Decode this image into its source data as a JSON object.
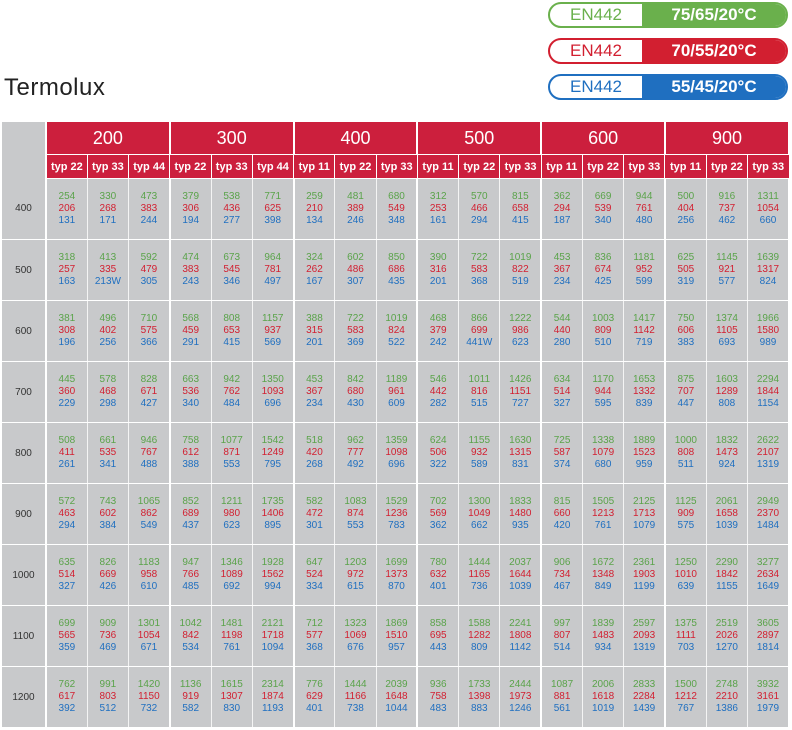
{
  "legend": [
    {
      "standard": "EN442",
      "condition": "75/65/20°C",
      "color": "#6ab04c"
    },
    {
      "standard": "EN442",
      "condition": "70/55/20°C",
      "color": "#d21f30"
    },
    {
      "standard": "EN442",
      "condition": "55/45/20°C",
      "color": "#1f6fc0"
    }
  ],
  "title": "Termolux",
  "groups": [
    "200",
    "300",
    "400",
    "500",
    "600",
    "900"
  ],
  "types": [
    [
      "typ 22",
      "typ 33",
      "typ 44"
    ],
    [
      "typ 22",
      "typ 33",
      "typ 44"
    ],
    [
      "typ 11",
      "typ 22",
      "typ 33"
    ],
    [
      "typ 11",
      "typ 22",
      "typ 33"
    ],
    [
      "typ 11",
      "typ 22",
      "typ 33"
    ],
    [
      "typ 11",
      "typ 22",
      "typ 33"
    ]
  ],
  "rows": [
    {
      "label": "400",
      "cells": [
        [
          "254",
          "206",
          "131"
        ],
        [
          "330",
          "268",
          "171"
        ],
        [
          "473",
          "383",
          "244"
        ],
        [
          "379",
          "306",
          "194"
        ],
        [
          "538",
          "436",
          "277"
        ],
        [
          "771",
          "625",
          "398"
        ],
        [
          "259",
          "210",
          "134"
        ],
        [
          "481",
          "389",
          "246"
        ],
        [
          "680",
          "549",
          "348"
        ],
        [
          "312",
          "253",
          "161"
        ],
        [
          "570",
          "466",
          "294"
        ],
        [
          "815",
          "658",
          "415"
        ],
        [
          "362",
          "294",
          "187"
        ],
        [
          "669",
          "539",
          "340"
        ],
        [
          "944",
          "761",
          "480"
        ],
        [
          "500",
          "404",
          "256"
        ],
        [
          "916",
          "737",
          "462"
        ],
        [
          "1311",
          "1054",
          "660"
        ]
      ]
    },
    {
      "label": "500",
      "cells": [
        [
          "318",
          "257",
          "163"
        ],
        [
          "413",
          "335",
          "213W"
        ],
        [
          "592",
          "479",
          "305"
        ],
        [
          "474",
          "383",
          "243"
        ],
        [
          "673",
          "545",
          "346"
        ],
        [
          "964",
          "781",
          "497"
        ],
        [
          "324",
          "262",
          "167"
        ],
        [
          "602",
          "486",
          "307"
        ],
        [
          "850",
          "686",
          "435"
        ],
        [
          "390",
          "316",
          "201"
        ],
        [
          "722",
          "583",
          "368"
        ],
        [
          "1019",
          "822",
          "519"
        ],
        [
          "453",
          "367",
          "234"
        ],
        [
          "836",
          "674",
          "425"
        ],
        [
          "1181",
          "952",
          "599"
        ],
        [
          "625",
          "505",
          "319"
        ],
        [
          "1145",
          "921",
          "577"
        ],
        [
          "1639",
          "1317",
          "824"
        ]
      ]
    },
    {
      "label": "600",
      "cells": [
        [
          "381",
          "308",
          "196"
        ],
        [
          "496",
          "402",
          "256"
        ],
        [
          "710",
          "575",
          "366"
        ],
        [
          "568",
          "459",
          "291"
        ],
        [
          "808",
          "653",
          "415"
        ],
        [
          "1157",
          "937",
          "569"
        ],
        [
          "388",
          "315",
          "201"
        ],
        [
          "722",
          "583",
          "369"
        ],
        [
          "1019",
          "824",
          "522"
        ],
        [
          "468",
          "379",
          "242"
        ],
        [
          "866",
          "699",
          "441W"
        ],
        [
          "1222",
          "986",
          "623"
        ],
        [
          "544",
          "440",
          "280"
        ],
        [
          "1003",
          "809",
          "510"
        ],
        [
          "1417",
          "1142",
          "719"
        ],
        [
          "750",
          "606",
          "383"
        ],
        [
          "1374",
          "1105",
          "693"
        ],
        [
          "1966",
          "1580",
          "989"
        ]
      ]
    },
    {
      "label": "700",
      "cells": [
        [
          "445",
          "360",
          "229"
        ],
        [
          "578",
          "468",
          "298"
        ],
        [
          "828",
          "671",
          "427"
        ],
        [
          "663",
          "536",
          "340"
        ],
        [
          "942",
          "762",
          "484"
        ],
        [
          "1350",
          "1093",
          "696"
        ],
        [
          "453",
          "367",
          "234"
        ],
        [
          "842",
          "680",
          "430"
        ],
        [
          "1189",
          "961",
          "609"
        ],
        [
          "546",
          "442",
          "282"
        ],
        [
          "1011",
          "816",
          "515"
        ],
        [
          "1426",
          "1151",
          "727"
        ],
        [
          "634",
          "514",
          "327"
        ],
        [
          "1170",
          "944",
          "595"
        ],
        [
          "1653",
          "1332",
          "839"
        ],
        [
          "875",
          "707",
          "447"
        ],
        [
          "1603",
          "1289",
          "808"
        ],
        [
          "2294",
          "1844",
          "1154"
        ]
      ]
    },
    {
      "label": "800",
      "cells": [
        [
          "508",
          "411",
          "261"
        ],
        [
          "661",
          "535",
          "341"
        ],
        [
          "946",
          "767",
          "488"
        ],
        [
          "758",
          "612",
          "388"
        ],
        [
          "1077",
          "871",
          "553"
        ],
        [
          "1542",
          "1249",
          "795"
        ],
        [
          "518",
          "420",
          "268"
        ],
        [
          "962",
          "777",
          "492"
        ],
        [
          "1359",
          "1098",
          "696"
        ],
        [
          "624",
          "506",
          "322"
        ],
        [
          "1155",
          "932",
          "589"
        ],
        [
          "1630",
          "1315",
          "831"
        ],
        [
          "725",
          "587",
          "374"
        ],
        [
          "1338",
          "1079",
          "680"
        ],
        [
          "1889",
          "1523",
          "959"
        ],
        [
          "1000",
          "808",
          "511"
        ],
        [
          "1832",
          "1473",
          "924"
        ],
        [
          "2622",
          "2107",
          "1319"
        ]
      ]
    },
    {
      "label": "900",
      "cells": [
        [
          "572",
          "463",
          "294"
        ],
        [
          "743",
          "602",
          "384"
        ],
        [
          "1065",
          "862",
          "549"
        ],
        [
          "852",
          "689",
          "437"
        ],
        [
          "1211",
          "980",
          "623"
        ],
        [
          "1735",
          "1406",
          "895"
        ],
        [
          "582",
          "472",
          "301"
        ],
        [
          "1083",
          "874",
          "553"
        ],
        [
          "1529",
          "1236",
          "783"
        ],
        [
          "702",
          "569",
          "362"
        ],
        [
          "1300",
          "1049",
          "662"
        ],
        [
          "1833",
          "1480",
          "935"
        ],
        [
          "815",
          "660",
          "420"
        ],
        [
          "1505",
          "1213",
          "761"
        ],
        [
          "2125",
          "1713",
          "1079"
        ],
        [
          "1125",
          "909",
          "575"
        ],
        [
          "2061",
          "1658",
          "1039"
        ],
        [
          "2949",
          "2370",
          "1484"
        ]
      ]
    },
    {
      "label": "1000",
      "cells": [
        [
          "635",
          "514",
          "327"
        ],
        [
          "826",
          "669",
          "426"
        ],
        [
          "1183",
          "958",
          "610"
        ],
        [
          "947",
          "766",
          "485"
        ],
        [
          "1346",
          "1089",
          "692"
        ],
        [
          "1928",
          "1562",
          "994"
        ],
        [
          "647",
          "524",
          "334"
        ],
        [
          "1203",
          "972",
          "615"
        ],
        [
          "1699",
          "1373",
          "870"
        ],
        [
          "780",
          "632",
          "401"
        ],
        [
          "1444",
          "1165",
          "736"
        ],
        [
          "2037",
          "1644",
          "1039"
        ],
        [
          "906",
          "734",
          "467"
        ],
        [
          "1672",
          "1348",
          "849"
        ],
        [
          "2361",
          "1903",
          "1199"
        ],
        [
          "1250",
          "1010",
          "639"
        ],
        [
          "2290",
          "1842",
          "1155"
        ],
        [
          "3277",
          "2634",
          "1649"
        ]
      ]
    },
    {
      "label": "1100",
      "cells": [
        [
          "699",
          "565",
          "359"
        ],
        [
          "909",
          "736",
          "469"
        ],
        [
          "1301",
          "1054",
          "671"
        ],
        [
          "1042",
          "842",
          "534"
        ],
        [
          "1481",
          "1198",
          "761"
        ],
        [
          "2121",
          "1718",
          "1094"
        ],
        [
          "712",
          "577",
          "368"
        ],
        [
          "1323",
          "1069",
          "676"
        ],
        [
          "1869",
          "1510",
          "957"
        ],
        [
          "858",
          "695",
          "443"
        ],
        [
          "1588",
          "1282",
          "809"
        ],
        [
          "2241",
          "1808",
          "1142"
        ],
        [
          "997",
          "807",
          "514"
        ],
        [
          "1839",
          "1483",
          "934"
        ],
        [
          "2597",
          "2093",
          "1319"
        ],
        [
          "1375",
          "1111",
          "703"
        ],
        [
          "2519",
          "2026",
          "1270"
        ],
        [
          "3605",
          "2897",
          "1814"
        ]
      ]
    },
    {
      "label": "1200",
      "cells": [
        [
          "762",
          "617",
          "392"
        ],
        [
          "991",
          "803",
          "512"
        ],
        [
          "1420",
          "1150",
          "732"
        ],
        [
          "1136",
          "919",
          "582"
        ],
        [
          "1615",
          "1307",
          "830"
        ],
        [
          "2314",
          "1874",
          "1193"
        ],
        [
          "776",
          "629",
          "401"
        ],
        [
          "1444",
          "1166",
          "738"
        ],
        [
          "2039",
          "1648",
          "1044"
        ],
        [
          "936",
          "758",
          "483"
        ],
        [
          "1733",
          "1398",
          "883"
        ],
        [
          "2444",
          "1973",
          "1246"
        ],
        [
          "1087",
          "881",
          "561"
        ],
        [
          "2006",
          "1618",
          "1019"
        ],
        [
          "2833",
          "2284",
          "1439"
        ],
        [
          "1500",
          "1212",
          "767"
        ],
        [
          "2748",
          "2210",
          "1386"
        ],
        [
          "3932",
          "3161",
          "1979"
        ]
      ]
    }
  ]
}
